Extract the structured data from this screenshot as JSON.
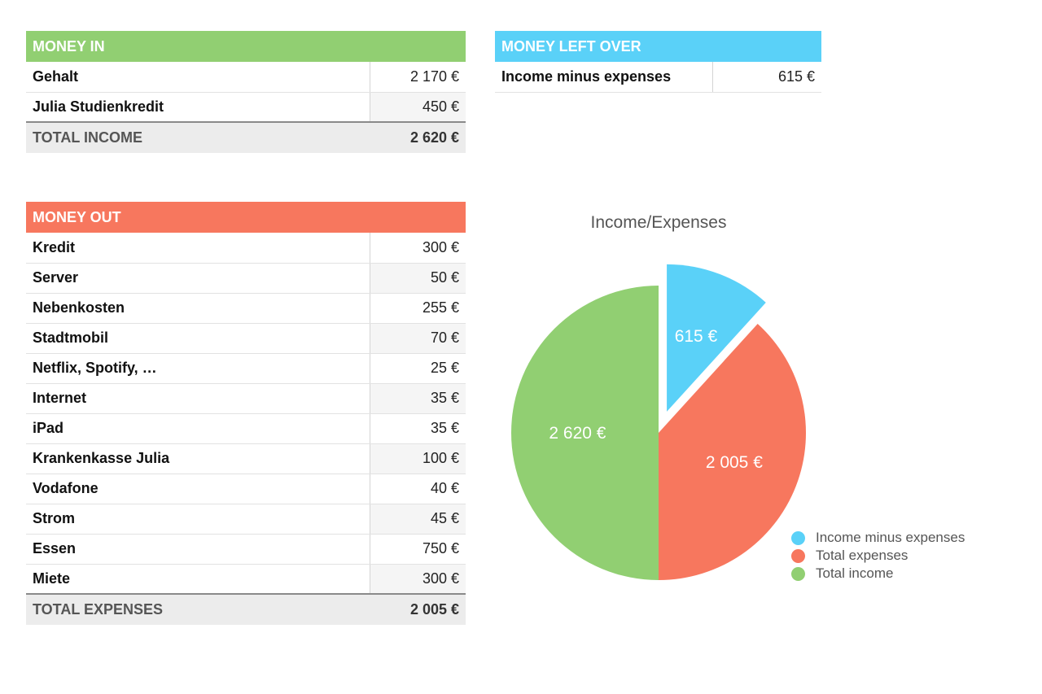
{
  "money_in": {
    "header": "MONEY IN",
    "rows": [
      {
        "label": "Gehalt",
        "value": "2 170 €"
      },
      {
        "label": "Julia Studienkredit",
        "value": "450 €"
      }
    ],
    "total": {
      "label": "TOTAL INCOME",
      "value": "2 620 €"
    },
    "color": "#91cf72"
  },
  "money_left": {
    "header": "MONEY LEFT OVER",
    "rows": [
      {
        "label": "Income minus expenses",
        "value": "615 €"
      }
    ],
    "color": "#5ad1f8"
  },
  "money_out": {
    "header": "MONEY OUT",
    "rows": [
      {
        "label": "Kredit",
        "value": "300 €"
      },
      {
        "label": "Server",
        "value": "50 €"
      },
      {
        "label": "Nebenkosten",
        "value": "255 €"
      },
      {
        "label": "Stadtmobil",
        "value": "70 €"
      },
      {
        "label": "Netflix, Spotify, …",
        "value": "25 €"
      },
      {
        "label": "Internet",
        "value": "35 €"
      },
      {
        "label": "iPad",
        "value": "35 €"
      },
      {
        "label": "Krankenkasse Julia",
        "value": "100 €"
      },
      {
        "label": "Vodafone",
        "value": "40 €"
      },
      {
        "label": "Strom",
        "value": "45 €"
      },
      {
        "label": "Essen",
        "value": "750 €"
      },
      {
        "label": "Miete",
        "value": "300 €"
      }
    ],
    "total": {
      "label": "TOTAL EXPENSES",
      "value": "2 005 €"
    },
    "color": "#f7775e"
  },
  "chart_data": {
    "type": "pie",
    "title": "Income/Expenses",
    "series": [
      {
        "name": "Income minus expenses",
        "value": 615,
        "label": "615 €",
        "color": "#5ad1f8",
        "exploded": true
      },
      {
        "name": "Total expenses",
        "value": 2005,
        "label": "2 005 €",
        "color": "#f7775e",
        "exploded": false
      },
      {
        "name": "Total income",
        "value": 2620,
        "label": "2 620 €",
        "color": "#91cf72",
        "exploded": false
      }
    ],
    "legend": "bottom-right"
  }
}
